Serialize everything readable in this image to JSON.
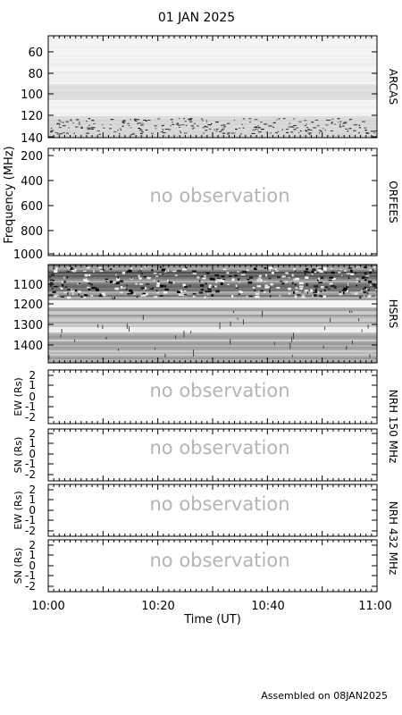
{
  "header": {
    "date": "01 JAN 2025"
  },
  "footer": {
    "assembled": "Assembled on 08JAN2025"
  },
  "colors": {
    "frame": "#000000",
    "no_observation_text": "#b4b4b4"
  },
  "chart_data": [
    {
      "type": "heatmap",
      "instrument": "ARCAS",
      "observed": true,
      "ylim": [
        140,
        40
      ],
      "yticks": [
        "60",
        "80",
        "100",
        "120",
        "140"
      ],
      "colormap": "inverted grayscale"
    },
    {
      "type": "heatmap",
      "instrument": "ORFEES",
      "observed": false,
      "status_text": "no observation",
      "ylim": [
        1000,
        150
      ],
      "yticks": [
        "200",
        "400",
        "600",
        "800",
        "1000"
      ],
      "ylabel": "Frequency (MHz)"
    },
    {
      "type": "heatmap",
      "instrument": "HSRS",
      "observed": true,
      "ylim": [
        1480,
        1020
      ],
      "yticks": [
        "1100",
        "1200",
        "1300",
        "1400"
      ],
      "colormap": "inverted grayscale"
    },
    {
      "type": "heatmap",
      "instrument": "NRH 150 MHz",
      "observed": false,
      "status_text": "no observation",
      "ylabel": "EW (Rs)",
      "ylim": [
        -2.5,
        2.5
      ],
      "yticks": [
        "2",
        "1",
        "0",
        "-1",
        "-2"
      ]
    },
    {
      "type": "heatmap",
      "instrument": "NRH 150 MHz",
      "observed": false,
      "status_text": "no observation",
      "ylabel": "SN (Rs)",
      "ylim": [
        -2.5,
        2.5
      ],
      "yticks": [
        "2",
        "1",
        "0",
        "-1",
        "-2"
      ]
    },
    {
      "type": "heatmap",
      "instrument": "NRH 432 MHz",
      "observed": false,
      "status_text": "no observation",
      "ylabel": "EW (Rs)",
      "ylim": [
        -2.5,
        2.5
      ],
      "yticks": [
        "2",
        "1",
        "0",
        "-1",
        "-2"
      ]
    },
    {
      "type": "heatmap",
      "instrument": "NRH 432 MHz",
      "observed": false,
      "status_text": "no observation",
      "ylabel": "SN (Rs)",
      "ylim": [
        -2.5,
        2.5
      ],
      "yticks": [
        "2",
        "1",
        "0",
        "-1",
        "-2"
      ]
    }
  ],
  "x_axis": {
    "xlabel": "Time (UT)",
    "ticks": [
      "10:00",
      "10:20",
      "10:40",
      "11:00"
    ],
    "xlim": [
      "10:00",
      "11:00"
    ]
  },
  "right_labels": {
    "arcas": "ARCAS",
    "orfees": "ORFEES",
    "hsrs": "HSRS",
    "nrh1": "NRH 150 MHz",
    "nrh2": "NRH 432 MHz"
  }
}
